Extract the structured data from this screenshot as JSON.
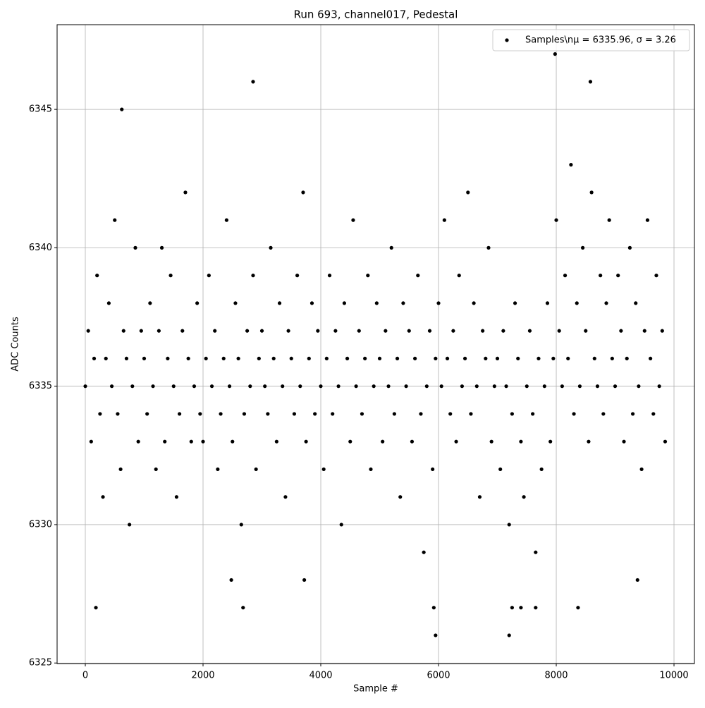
{
  "chart_data": {
    "type": "scatter",
    "title": "Run 693, channel017, Pedestal",
    "xlabel": "Sample #",
    "ylabel": "ADC Counts",
    "series": [
      {
        "name": "Samples\\nμ = 6335.96, σ = 3.26",
        "color": "#000000",
        "x": [
          0,
          50,
          100,
          150,
          200,
          250,
          300,
          350,
          400,
          450,
          500,
          550,
          600,
          650,
          700,
          750,
          800,
          850,
          900,
          950,
          1000,
          1050,
          1100,
          1150,
          1200,
          1250,
          1300,
          1350,
          1400,
          1450,
          1500,
          1550,
          1600,
          1650,
          1700,
          1750,
          1800,
          1850,
          1900,
          1950,
          2000,
          2050,
          2100,
          2150,
          2200,
          2250,
          2300,
          2350,
          2400,
          2450,
          2500,
          2550,
          2600,
          2650,
          2700,
          2750,
          2800,
          2850,
          2900,
          2950,
          3000,
          3050,
          3100,
          3150,
          3200,
          3250,
          3300,
          3350,
          3400,
          3450,
          3500,
          3550,
          3600,
          3650,
          3700,
          3750,
          3800,
          3850,
          3900,
          3950,
          4000,
          4050,
          4100,
          4150,
          4200,
          4250,
          4300,
          4350,
          4400,
          4450,
          4500,
          4550,
          4600,
          4650,
          4700,
          4750,
          4800,
          4850,
          4900,
          4950,
          5000,
          5050,
          5100,
          5150,
          5200,
          5250,
          5300,
          5350,
          5400,
          5450,
          5500,
          5550,
          5600,
          5650,
          5700,
          5750,
          5800,
          5850,
          5900,
          5950,
          6000,
          6050,
          6100,
          6150,
          6200,
          6250,
          6300,
          6350,
          6400,
          6450,
          6500,
          6550,
          6600,
          6650,
          6700,
          6750,
          6800,
          6850,
          6900,
          6950,
          7000,
          7050,
          7100,
          7150,
          7200,
          7250,
          7300,
          7350,
          7400,
          7450,
          7500,
          7550,
          7600,
          7650,
          7700,
          7750,
          7800,
          7850,
          7900,
          7950,
          8000,
          8050,
          8100,
          8150,
          8200,
          8250,
          8300,
          8350,
          8400,
          8450,
          8500,
          8550,
          8600,
          8650,
          8700,
          8750,
          8800,
          8850,
          8900,
          8950,
          9000,
          9050,
          9100,
          9150,
          9200,
          9250,
          9300,
          9350,
          9400,
          9450,
          9500,
          9550,
          9600,
          9650,
          9700,
          9750,
          9800,
          9850,
          180,
          620,
          2850,
          2680,
          5950,
          7200,
          7980,
          8580,
          8370,
          5920,
          7250,
          7400,
          7650,
          3720,
          2480,
          9380
        ],
        "values": [
          6335,
          6337,
          6333,
          6336,
          6339,
          6334,
          6331,
          6336,
          6338,
          6335,
          6341,
          6334,
          6332,
          6337,
          6336,
          6330,
          6335,
          6340,
          6333,
          6337,
          6336,
          6334,
          6338,
          6335,
          6332,
          6337,
          6340,
          6333,
          6336,
          6339,
          6335,
          6331,
          6334,
          6337,
          6342,
          6336,
          6333,
          6335,
          6338,
          6334,
          6333,
          6336,
          6339,
          6335,
          6337,
          6332,
          6334,
          6336,
          6341,
          6335,
          6333,
          6338,
          6336,
          6330,
          6334,
          6337,
          6335,
          6339,
          6332,
          6336,
          6337,
          6335,
          6334,
          6340,
          6336,
          6333,
          6338,
          6335,
          6331,
          6337,
          6336,
          6334,
          6339,
          6335,
          6342,
          6333,
          6336,
          6338,
          6334,
          6337,
          6335,
          6332,
          6336,
          6339,
          6334,
          6337,
          6335,
          6330,
          6338,
          6336,
          6333,
          6341,
          6335,
          6337,
          6334,
          6336,
          6339,
          6332,
          6335,
          6338,
          6336,
          6333,
          6337,
          6335,
          6340,
          6334,
          6336,
          6331,
          6338,
          6335,
          6337,
          6333,
          6336,
          6339,
          6334,
          6329,
          6335,
          6337,
          6332,
          6336,
          6338,
          6335,
          6341,
          6336,
          6334,
          6337,
          6333,
          6339,
          6335,
          6336,
          6342,
          6334,
          6338,
          6335,
          6331,
          6337,
          6336,
          6340,
          6333,
          6335,
          6336,
          6332,
          6337,
          6335,
          6330,
          6334,
          6338,
          6336,
          6333,
          6331,
          6335,
          6337,
          6334,
          6329,
          6336,
          6332,
          6335,
          6338,
          6333,
          6336,
          6341,
          6337,
          6335,
          6339,
          6336,
          6343,
          6334,
          6338,
          6335,
          6340,
          6337,
          6333,
          6342,
          6336,
          6335,
          6339,
          6334,
          6338,
          6341,
          6336,
          6335,
          6339,
          6337,
          6333,
          6336,
          6340,
          6334,
          6338,
          6335,
          6332,
          6337,
          6341,
          6336,
          6334,
          6339,
          6335,
          6337,
          6333,
          6327,
          6345,
          6346,
          6327,
          6326,
          6326,
          6347,
          6346,
          6327,
          6327,
          6327,
          6327,
          6327,
          6328,
          6328,
          6328
        ]
      }
    ],
    "xlim": [
      -479,
      10347
    ],
    "ylim": [
      6324.98,
      6348.06
    ],
    "xticks": [
      0,
      2000,
      4000,
      6000,
      8000,
      10000
    ],
    "yticks": [
      6325,
      6330,
      6335,
      6340,
      6345
    ],
    "grid": true,
    "legend": "upper right"
  }
}
